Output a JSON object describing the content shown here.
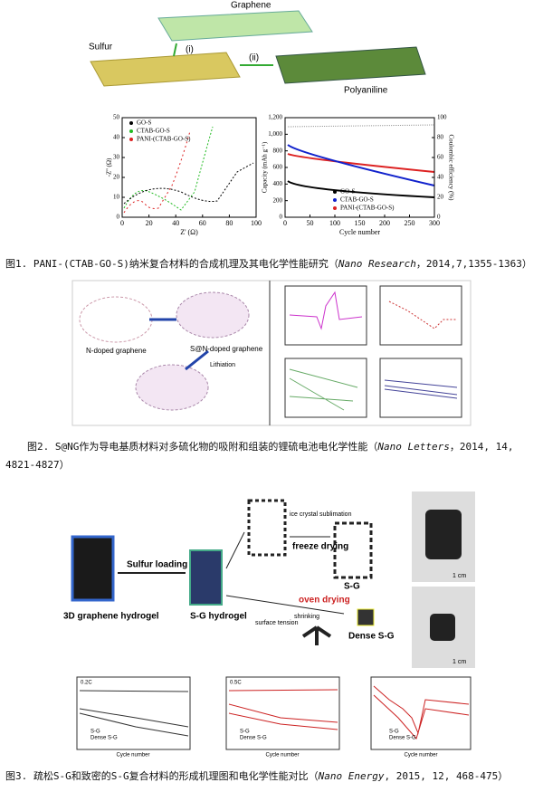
{
  "figures": [
    {
      "labels": {
        "graphene": "Graphene",
        "sulfur": "Sulfur",
        "step1": "(i)",
        "step2": "(ii)",
        "polyaniline": "Polyaniline"
      },
      "chart_data": [
        {
          "type": "line",
          "xlabel": "Z' (Ω)",
          "ylabel": "-Z'' (Ω)",
          "xlim": [
            0,
            100
          ],
          "xticks": [
            0,
            20,
            40,
            60,
            80,
            100
          ],
          "ylim": [
            0,
            50
          ],
          "yticks": [
            0,
            10,
            20,
            30,
            40,
            50
          ],
          "series": [
            {
              "name": "GO-S",
              "color": "#000000"
            },
            {
              "name": "CTAB-GO-S",
              "color": "#22bb22"
            },
            {
              "name": "PANI-(CTAB-GO-S)",
              "color": "#dd2222"
            }
          ]
        },
        {
          "type": "line",
          "xlabel": "Cycle number",
          "ylabel": "Capacity (mAh g⁻¹)",
          "y2label": "Coulombic efficiency (%)",
          "xlim": [
            0,
            300
          ],
          "xticks": [
            0,
            50,
            100,
            150,
            200,
            250,
            300
          ],
          "ylim": [
            0,
            1200
          ],
          "yticks": [
            0,
            200,
            400,
            600,
            800,
            {
              "value": 1000,
              "label": "1,000"
            },
            {
              "value": 1200,
              "label": "1,200"
            }
          ],
          "y2lim": [
            0,
            100
          ],
          "y2ticks": [
            0,
            20,
            40,
            60,
            80,
            100
          ],
          "series": [
            {
              "name": "GO-S",
              "color": "#000000"
            },
            {
              "name": "CTAB-GO-S",
              "color": "#1122cc"
            },
            {
              "name": "PANI-(CTAB-GO-S)",
              "color": "#dd2222"
            }
          ]
        }
      ],
      "caption": {
        "text": "图1. PANI-(CTAB-GO-S)纳米复合材料的合成机理及其电化学性能研究（",
        "journal": "Nano Research",
        "ref": "，2014,7,1355-1363）"
      }
    },
    {
      "labels": {
        "ng": "N-doped graphene",
        "sng": "S@N-doped graphene",
        "lith": "Lithiation"
      },
      "caption": {
        "text": "图2. S@NG作为导电基质材料对多硫化物的吸附和组装的锂硫电池电化学性能（",
        "journal": "Nano Letters",
        "ref": "，2014, 14, 4821-4827）"
      }
    },
    {
      "labels": {
        "hydrogel": "3D graphene hydrogel",
        "loading": "Sulfur loading",
        "sg_hydrogel": "S-G hydrogel",
        "ice": "ice crystal sublimation",
        "freeze": "freeze drying",
        "sg": "S-G",
        "oven": "oven drying",
        "surface": "surface tension",
        "shrink": "shrinking",
        "dense": "Dense S-G",
        "scale1": "1 cm",
        "scale2": "1 cm"
      },
      "panels": [
        {
          "rate": "0.2C",
          "legend": [
            "S-G",
            "Dense S-G"
          ],
          "xlabel": "Cycle number"
        },
        {
          "rate": "0.5C",
          "legend": [
            "S-G",
            "Dense S-G"
          ],
          "xlabel": "Cycle number"
        },
        {
          "legend": [
            "S-G",
            "Dense S-G"
          ],
          "xlabel": "Cycle number"
        }
      ],
      "caption": {
        "text": "图3. 疏松S-G和致密的S-G复合材料的形成机理图和电化学性能对比（",
        "journal": "Nano Energy",
        "ref": ", 2015, 12, 468-475）"
      }
    }
  ]
}
